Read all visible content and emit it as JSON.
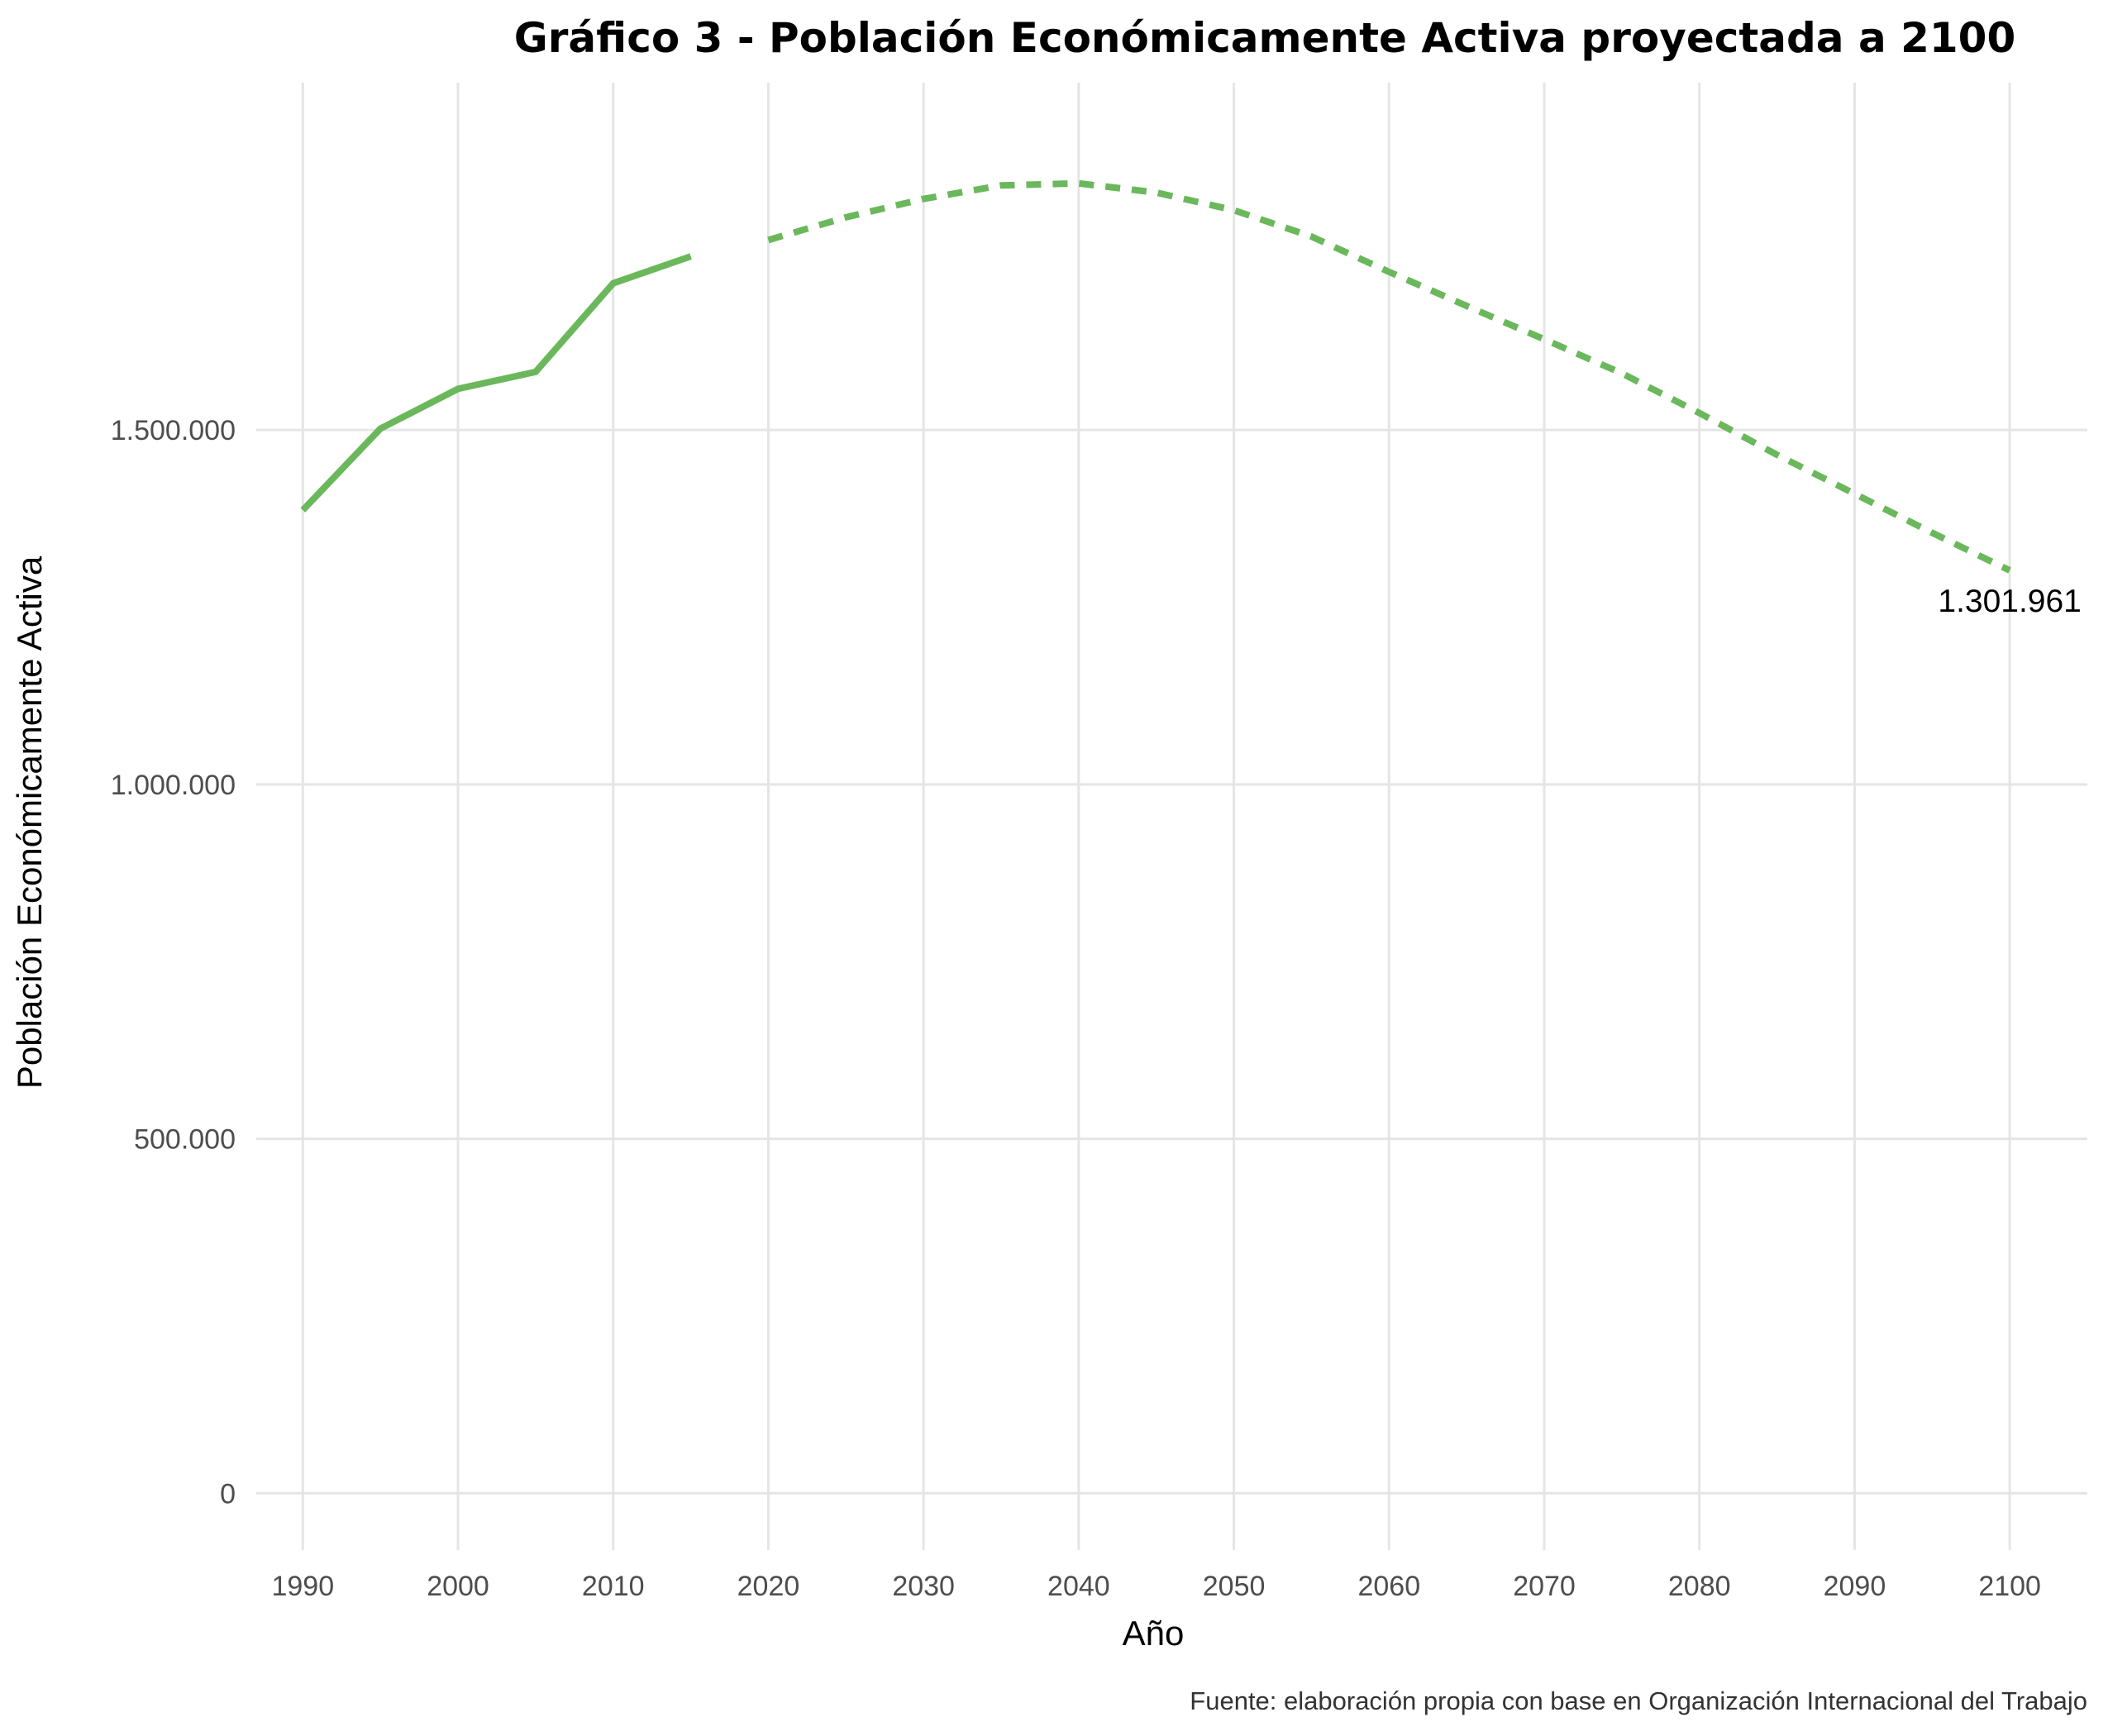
{
  "chart_data": {
    "type": "line",
    "title": "Gráfico 3 - Población Económicamente Activa proyectada a 2100",
    "xlabel": "Año",
    "ylabel": "Población Económicamente Activa",
    "caption": "Fuente: elaboración propia con base en Organización Internacional del Trabajo",
    "xlim": [
      1987,
      2105
    ],
    "ylim": [
      -80000,
      1990000
    ],
    "x_ticks": [
      1990,
      2000,
      2010,
      2020,
      2030,
      2040,
      2050,
      2060,
      2070,
      2080,
      2090,
      2100
    ],
    "x_tick_labels": [
      "1990",
      "2000",
      "2010",
      "2020",
      "2030",
      "2040",
      "2050",
      "2060",
      "2070",
      "2080",
      "2090",
      "2100"
    ],
    "y_ticks": [
      0,
      500000,
      1000000,
      1500000
    ],
    "y_tick_labels": [
      "0",
      "500.000",
      "1.000.000",
      "1.500.000"
    ],
    "grid": true,
    "color": "#6bb85c",
    "series": [
      {
        "style": "solid",
        "x": [
          1990,
          1995,
          2000,
          2005,
          2010,
          2015
        ],
        "y": [
          1387000,
          1502000,
          1558000,
          1582000,
          1707000,
          1745000
        ]
      },
      {
        "style": "dashed",
        "x": [
          2020,
          2025,
          2030,
          2035,
          2040,
          2045,
          2050,
          2055,
          2060,
          2065,
          2070,
          2075,
          2080,
          2085,
          2090,
          2095,
          2100
        ],
        "y": [
          1768000,
          1800000,
          1826000,
          1845000,
          1848000,
          1835000,
          1810000,
          1773000,
          1723000,
          1675000,
          1628000,
          1580000,
          1524000,
          1465000,
          1410000,
          1355000,
          1301961
        ]
      }
    ],
    "annotations": [
      {
        "x": 2100,
        "y": 1301961,
        "label": "1.301.961"
      }
    ]
  }
}
